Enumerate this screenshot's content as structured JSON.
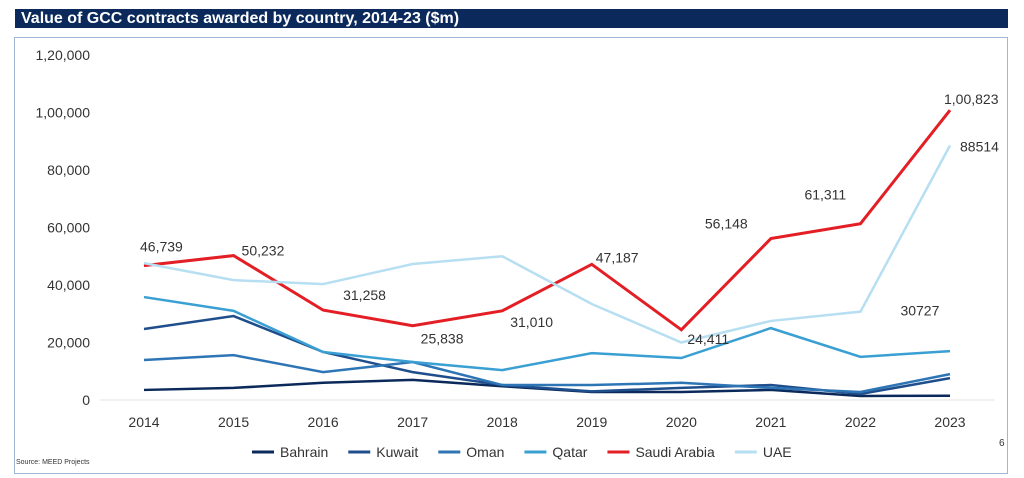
{
  "chart_data": {
    "type": "line",
    "title": "Value of GCC contracts awarded by country, 2014-23 ($m)",
    "x": [
      "2014",
      "2015",
      "2016",
      "2017",
      "2018",
      "2019",
      "2020",
      "2021",
      "2022",
      "2023"
    ],
    "ylim": [
      0,
      120000
    ],
    "yticks": [
      "0",
      "20,000",
      "40,000",
      "60,000",
      "80,000",
      "1,00,000",
      "1,20,000"
    ],
    "grid": false,
    "legend": "bottom",
    "series": [
      {
        "name": "Bahrain",
        "color": "#0b2a5b",
        "values": [
          3500,
          4200,
          6000,
          7000,
          4800,
          2800,
          2800,
          3500,
          1400,
          1500
        ]
      },
      {
        "name": "Kuwait",
        "color": "#1f4e8c",
        "values": [
          24700,
          29200,
          16700,
          9700,
          5200,
          3000,
          4200,
          5200,
          2100,
          7600
        ]
      },
      {
        "name": "Oman",
        "color": "#2e75b6",
        "values": [
          13900,
          15600,
          9700,
          13200,
          5200,
          5200,
          6000,
          4200,
          2800,
          9000
        ]
      },
      {
        "name": "Qatar",
        "color": "#3a9fd2",
        "values": [
          35800,
          31000,
          16700,
          13200,
          10400,
          16300,
          14600,
          25000,
          15000,
          17000
        ]
      },
      {
        "name": "Saudi Arabia",
        "color": "#e31e24",
        "values": [
          46739,
          50232,
          31258,
          25838,
          31010,
          47187,
          24411,
          56148,
          61311,
          100823
        ],
        "labels": [
          "46,739",
          "50,232",
          "31,258",
          "25,838",
          "31,010",
          "47,187",
          "24,411",
          "56,148",
          "61,311",
          "1,00,823"
        ]
      },
      {
        "name": "UAE",
        "color": "#b7dff2",
        "values": [
          47600,
          41700,
          40300,
          47300,
          50000,
          33400,
          20000,
          27500,
          30727,
          88514
        ],
        "labels": [
          "",
          "",
          "",
          "",
          "",
          "",
          "",
          "",
          "30727",
          "88514"
        ]
      }
    ]
  },
  "source": "Source: MEED Projects",
  "page_number": "6"
}
